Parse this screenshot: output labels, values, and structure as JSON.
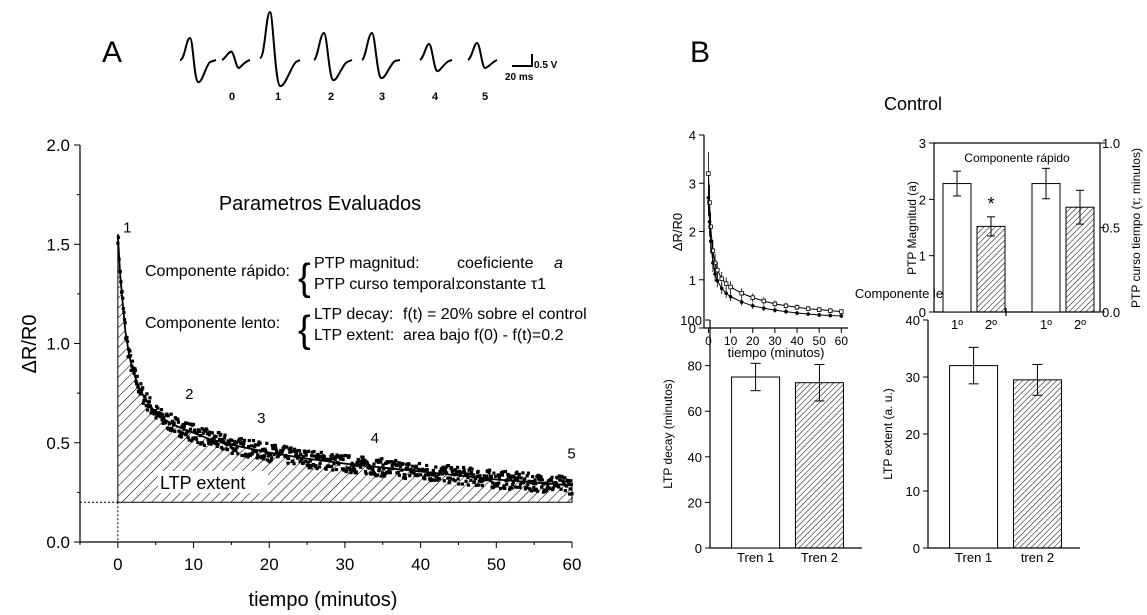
{
  "colors": {
    "ink": "#000000",
    "background": "#ffffff"
  },
  "panel_labels": {
    "a": "A",
    "b": "B"
  },
  "traces": {
    "numbers": [
      "0",
      "1",
      "2",
      "3",
      "4",
      "5"
    ],
    "scale_v": "0.5 V",
    "scale_t": "20 ms"
  },
  "panel_a": {
    "box_title": "Parametros Evaluados",
    "rows": [
      {
        "label": "Componente rápido:",
        "items": [
          {
            "name": "PTP magnitud:",
            "desc": "coeficiente",
            "sym": "a"
          },
          {
            "name": "PTP curso temporal:",
            "desc": "constante τ1",
            "sym": ""
          }
        ]
      },
      {
        "label": "Componente lento:",
        "items": [
          {
            "name": "LTP decay:",
            "desc": "f(t) = 20% sobre el control",
            "sym": ""
          },
          {
            "name": "LTP extent:",
            "desc": "area bajo f(0) - f(t)=0.2",
            "sym": ""
          }
        ]
      }
    ],
    "area_label": "LTP extent"
  },
  "panel_b": {
    "title": "Control",
    "lento_title": "Componente lento"
  },
  "chart_data": [
    {
      "id": "main",
      "type": "scatter",
      "title": "",
      "xlabel": "tiempo (minutos)",
      "ylabel": "ΔR/R0",
      "xlim": [
        -5,
        60
      ],
      "ylim": [
        0,
        2
      ],
      "xticks": [
        0,
        10,
        20,
        30,
        40,
        50,
        60
      ],
      "yticks": [
        0.0,
        0.5,
        1.0,
        1.5,
        2.0
      ],
      "ytick_labels": [
        "0.0",
        "0.5",
        "1.0",
        "1.5",
        "2.0"
      ],
      "baseline": 0.2,
      "fit": {
        "x": [
          0,
          0.3,
          0.7,
          1,
          1.5,
          2,
          3,
          4,
          5,
          6,
          8,
          10,
          12,
          15,
          20,
          25,
          30,
          35,
          40,
          45,
          50,
          55,
          60
        ],
        "y": [
          1.55,
          1.35,
          1.18,
          1.06,
          0.94,
          0.86,
          0.76,
          0.7,
          0.65,
          0.62,
          0.58,
          0.55,
          0.52,
          0.49,
          0.45,
          0.42,
          0.395,
          0.375,
          0.355,
          0.335,
          0.315,
          0.3,
          0.285
        ]
      },
      "annotations": [
        {
          "text": "1",
          "x": 0.3,
          "y": 1.56
        },
        {
          "text": "2",
          "x": 8.5,
          "y": 0.72
        },
        {
          "text": "3",
          "x": 18,
          "y": 0.6
        },
        {
          "text": "4",
          "x": 33,
          "y": 0.5
        },
        {
          "text": "5",
          "x": 59,
          "y": 0.42
        }
      ]
    },
    {
      "id": "decay",
      "type": "line",
      "title": "",
      "xlabel": "tiempo (minutos)",
      "ylabel": "ΔR/R0",
      "xlim": [
        -2,
        63
      ],
      "ylim": [
        0,
        4
      ],
      "xticks": [
        0,
        10,
        20,
        30,
        40,
        50,
        60
      ],
      "yticks": [
        0,
        1,
        2,
        3,
        4
      ],
      "series": [
        {
          "x": [
            0,
            0.5,
            1,
            2,
            3,
            4,
            6,
            8,
            10,
            15,
            20,
            25,
            30,
            35,
            40,
            45,
            50,
            55,
            60
          ],
          "y": [
            3.2,
            2.6,
            2.1,
            1.6,
            1.35,
            1.2,
            1.02,
            0.92,
            0.85,
            0.72,
            0.63,
            0.56,
            0.5,
            0.46,
            0.43,
            0.4,
            0.38,
            0.36,
            0.34
          ]
        },
        {
          "x": [
            0,
            0.5,
            1,
            2,
            3,
            4,
            6,
            8,
            10,
            15,
            20,
            25,
            30,
            35,
            40,
            45,
            50,
            55,
            60
          ],
          "y": [
            2.7,
            2.2,
            1.8,
            1.35,
            1.12,
            0.98,
            0.82,
            0.72,
            0.65,
            0.54,
            0.46,
            0.41,
            0.37,
            0.34,
            0.31,
            0.29,
            0.27,
            0.26,
            0.25
          ]
        }
      ]
    },
    {
      "id": "rapido",
      "type": "bar",
      "title": "Componente rápido",
      "ylabel_left": "PTP Magnitud (a)",
      "ylabel_right": "PTP curso tiempo (τ; minutos)",
      "left_ylim": [
        0,
        3
      ],
      "left_yticks": [
        0,
        1,
        2,
        3
      ],
      "right_ylim": [
        0,
        1
      ],
      "right_yticks": [
        "0.0",
        "0.5",
        "1.0"
      ],
      "categories": [
        "1º",
        "2º",
        "1º",
        "2º"
      ],
      "values": [
        2.28,
        1.52,
        0.76,
        0.62
      ],
      "errors": [
        0.22,
        0.17,
        0.09,
        0.1
      ],
      "axis": [
        "left",
        "left",
        "right",
        "right"
      ],
      "fill": [
        "open",
        "hatched",
        "open",
        "hatched"
      ],
      "significance": "*"
    },
    {
      "id": "ltp_decay",
      "type": "bar",
      "title": "",
      "ylabel": "LTP decay (minutos)",
      "ylim": [
        0,
        100
      ],
      "yticks": [
        0,
        20,
        40,
        60,
        80,
        100
      ],
      "categories": [
        "Tren 1",
        "Tren 2"
      ],
      "values": [
        75,
        72.5
      ],
      "errors": [
        6,
        8
      ],
      "fill": [
        "open",
        "hatched"
      ]
    },
    {
      "id": "ltp_extent",
      "type": "bar",
      "title": "",
      "ylabel": "LTP extent (a. u.)",
      "ylim": [
        0,
        40
      ],
      "yticks": [
        0,
        10,
        20,
        30,
        40
      ],
      "categories": [
        "Tren 1",
        "tren 2"
      ],
      "values": [
        32,
        29.5
      ],
      "errors": [
        3.2,
        2.7
      ],
      "fill": [
        "open",
        "hatched"
      ]
    }
  ]
}
